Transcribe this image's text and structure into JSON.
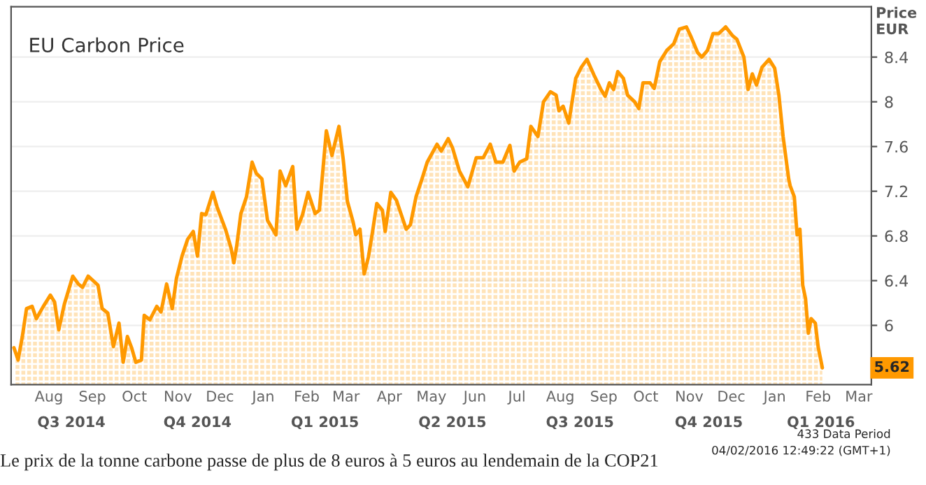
{
  "chart_data": {
    "type": "area",
    "title": "EU Carbon Price",
    "ylabel": "Price\nEUR",
    "series": [
      {
        "color": "#ff9900",
        "x": [
          "2014-07-07",
          "2014-07-10",
          "2014-07-13",
          "2014-07-16",
          "2014-07-20",
          "2014-07-23",
          "2014-07-28",
          "2014-08-02",
          "2014-08-05",
          "2014-08-08",
          "2014-08-12",
          "2014-08-18",
          "2014-08-22",
          "2014-08-25",
          "2014-08-29",
          "2014-09-05",
          "2014-09-08",
          "2014-09-12",
          "2014-09-16",
          "2014-09-20",
          "2014-09-23",
          "2014-09-26",
          "2014-09-29",
          "2014-10-02",
          "2014-10-06",
          "2014-10-08",
          "2014-10-12",
          "2014-10-17",
          "2014-10-20",
          "2014-10-24",
          "2014-10-28",
          "2014-10-31",
          "2014-11-04",
          "2014-11-08",
          "2014-11-12",
          "2014-11-15",
          "2014-11-18",
          "2014-11-21",
          "2014-11-26",
          "2014-11-29",
          "2014-12-05",
          "2014-12-09",
          "2014-12-11",
          "2014-12-13",
          "2014-12-16",
          "2014-12-20",
          "2014-12-24",
          "2014-12-27",
          "2014-12-31",
          "2015-01-04",
          "2015-01-10",
          "2015-01-13",
          "2015-01-17",
          "2015-01-22",
          "2015-01-25",
          "2015-01-29",
          "2015-02-02",
          "2015-02-07",
          "2015-02-10",
          "2015-02-15",
          "2015-02-19",
          "2015-02-24",
          "2015-02-27",
          "2015-03-02",
          "2015-03-06",
          "2015-03-08",
          "2015-03-11",
          "2015-03-14",
          "2015-03-17",
          "2015-03-20",
          "2015-03-23",
          "2015-03-27",
          "2015-03-29",
          "2015-04-02",
          "2015-04-06",
          "2015-04-13",
          "2015-04-16",
          "2015-04-20",
          "2015-04-24",
          "2015-04-28",
          "2015-05-05",
          "2015-05-08",
          "2015-05-13",
          "2015-05-16",
          "2015-05-21",
          "2015-05-27",
          "2015-06-02",
          "2015-06-07",
          "2015-06-12",
          "2015-06-16",
          "2015-06-21",
          "2015-06-26",
          "2015-06-29",
          "2015-07-03",
          "2015-07-08",
          "2015-07-11",
          "2015-07-16",
          "2015-07-20",
          "2015-07-25",
          "2015-07-29",
          "2015-07-31",
          "2015-08-03",
          "2015-08-07",
          "2015-08-12",
          "2015-08-16",
          "2015-08-20",
          "2015-08-25",
          "2015-08-30",
          "2015-09-02",
          "2015-09-05",
          "2015-09-08",
          "2015-09-11",
          "2015-09-15",
          "2015-09-18",
          "2015-09-23",
          "2015-09-26",
          "2015-09-29",
          "2015-10-04",
          "2015-10-07",
          "2015-10-11",
          "2015-10-16",
          "2015-10-21",
          "2015-10-25",
          "2015-10-30",
          "2015-11-02",
          "2015-11-07",
          "2015-11-10",
          "2015-11-14",
          "2015-11-18",
          "2015-11-22",
          "2015-11-27",
          "2015-12-02",
          "2015-12-05",
          "2015-12-10",
          "2015-12-13",
          "2015-12-16",
          "2015-12-19",
          "2015-12-23",
          "2015-12-28",
          "2016-01-01",
          "2016-01-04",
          "2016-01-07",
          "2016-01-11",
          "2016-01-12",
          "2016-01-15",
          "2016-01-17",
          "2016-01-19",
          "2016-01-21",
          "2016-01-23",
          "2016-01-25",
          "2016-01-27",
          "2016-01-30",
          "2016-02-01",
          "2016-02-04"
        ],
        "values": [
          5.8,
          5.69,
          5.9,
          6.15,
          6.17,
          6.06,
          6.17,
          6.27,
          6.21,
          5.96,
          6.19,
          6.44,
          6.37,
          6.34,
          6.44,
          6.36,
          6.15,
          6.11,
          5.81,
          6.02,
          5.67,
          5.9,
          5.8,
          5.67,
          5.69,
          6.09,
          6.05,
          6.17,
          6.12,
          6.37,
          6.15,
          6.42,
          6.62,
          6.77,
          6.84,
          6.62,
          7.0,
          6.99,
          7.19,
          7.06,
          6.86,
          6.69,
          6.56,
          6.71,
          7.0,
          7.15,
          7.46,
          7.36,
          7.31,
          6.94,
          6.81,
          7.38,
          7.25,
          7.42,
          6.86,
          6.99,
          7.19,
          7.0,
          7.03,
          7.74,
          7.52,
          7.78,
          7.49,
          7.11,
          6.93,
          6.81,
          6.86,
          6.46,
          6.61,
          6.84,
          7.09,
          7.03,
          6.84,
          7.19,
          7.12,
          6.86,
          6.9,
          7.15,
          7.3,
          7.46,
          7.62,
          7.56,
          7.67,
          7.59,
          7.38,
          7.24,
          7.5,
          7.5,
          7.62,
          7.46,
          7.46,
          7.61,
          7.38,
          7.46,
          7.49,
          7.78,
          7.69,
          8.0,
          8.09,
          8.06,
          7.92,
          7.96,
          7.81,
          8.21,
          8.31,
          8.38,
          8.24,
          8.11,
          8.05,
          8.17,
          8.11,
          8.27,
          8.21,
          8.06,
          8.0,
          7.94,
          8.17,
          8.17,
          8.12,
          8.36,
          8.46,
          8.52,
          8.65,
          8.67,
          8.59,
          8.44,
          8.4,
          8.46,
          8.61,
          8.61,
          8.67,
          8.59,
          8.56,
          8.4,
          8.11,
          8.25,
          8.15,
          8.31,
          8.38,
          8.3,
          8.06,
          7.69,
          7.31,
          7.25,
          7.15,
          6.81,
          6.86,
          6.36,
          6.24,
          5.93,
          6.06,
          6.02,
          5.81,
          5.62
        ]
      }
    ],
    "xlim": [
      "2014-07-05",
      "2016-03-10"
    ],
    "xticks": [
      {
        "value": "2014-08-01",
        "label": "Aug"
      },
      {
        "value": "2014-09-01",
        "label": "Sep"
      },
      {
        "value": "2014-10-01",
        "label": "Oct"
      },
      {
        "value": "2014-11-01",
        "label": "Nov"
      },
      {
        "value": "2014-12-01",
        "label": "Dec"
      },
      {
        "value": "2015-01-01",
        "label": "Jan"
      },
      {
        "value": "2015-02-01",
        "label": "Feb"
      },
      {
        "value": "2015-03-01",
        "label": "Mar"
      },
      {
        "value": "2015-04-01",
        "label": "Apr"
      },
      {
        "value": "2015-05-01",
        "label": "May"
      },
      {
        "value": "2015-06-01",
        "label": "Jun"
      },
      {
        "value": "2015-07-01",
        "label": "Jul"
      },
      {
        "value": "2015-08-01",
        "label": "Aug"
      },
      {
        "value": "2015-09-01",
        "label": "Sep"
      },
      {
        "value": "2015-10-01",
        "label": "Oct"
      },
      {
        "value": "2015-11-01",
        "label": "Nov"
      },
      {
        "value": "2015-12-01",
        "label": "Dec"
      },
      {
        "value": "2016-01-01",
        "label": "Jan"
      },
      {
        "value": "2016-02-01",
        "label": "Feb"
      },
      {
        "value": "2016-03-01",
        "label": "Mar"
      }
    ],
    "x2lim": [
      "2014-07-05",
      "2016-03-10"
    ],
    "x2ticks": [
      {
        "value": "2014-08-17",
        "label": "Q3 2014"
      },
      {
        "value": "2014-11-15",
        "label": "Q4 2014"
      },
      {
        "value": "2015-02-14",
        "label": "Q1 2015"
      },
      {
        "value": "2015-05-16",
        "label": "Q2 2015"
      },
      {
        "value": "2015-08-15",
        "label": "Q3 2015"
      },
      {
        "value": "2015-11-15",
        "label": "Q4 2015"
      },
      {
        "value": "2016-02-03",
        "label": "Q1 2016"
      }
    ],
    "ylim": [
      5.47,
      8.85
    ],
    "yticks": [
      6,
      6.4,
      6.8,
      7.2,
      7.6,
      8,
      8.4
    ],
    "grid": "y",
    "annotations": [
      "5.62",
      "433 Data Period",
      "04/02/2016 12:49:22 (GMT+1)",
      "Le prix de la tonne carbone passe de plus de 8 euros à 5 euros au lendemain de la COP21"
    ]
  }
}
